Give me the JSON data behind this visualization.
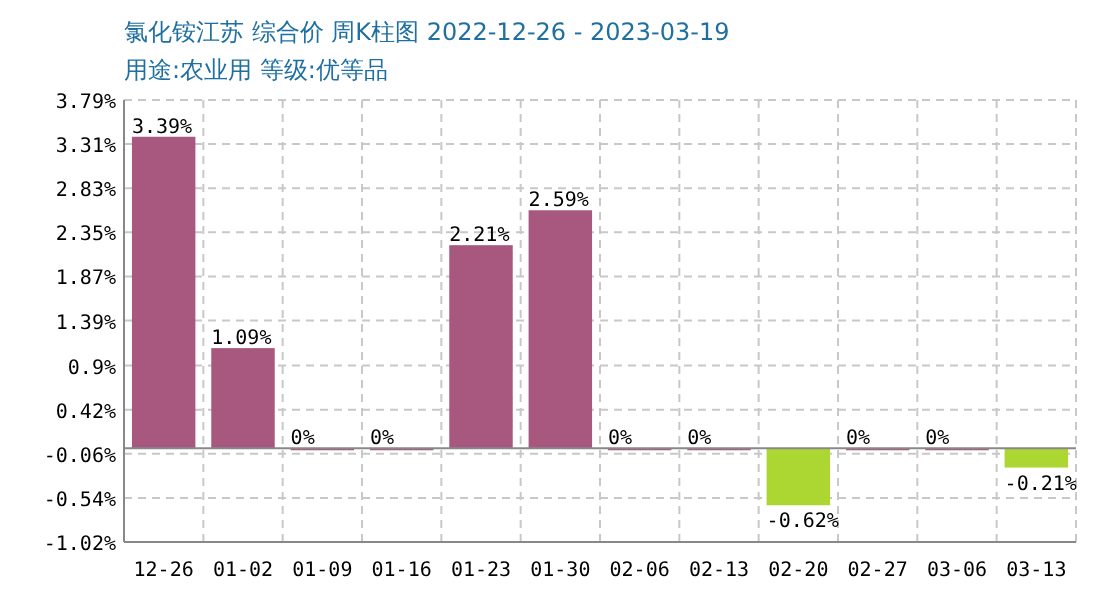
{
  "chart_data": {
    "type": "bar",
    "title": "氯化铵江苏 综合价 周K柱图 2022-12-26 - 2023-03-19",
    "subtitle": "用途:农业用 等级:优等品",
    "categories": [
      "12-26",
      "01-02",
      "01-09",
      "01-16",
      "01-23",
      "01-30",
      "02-06",
      "02-13",
      "02-20",
      "02-27",
      "03-06",
      "03-13"
    ],
    "values": [
      3.39,
      1.09,
      0,
      0,
      2.21,
      2.59,
      0,
      0,
      -0.62,
      0,
      0,
      -0.21
    ],
    "colors": [
      "#a8587f",
      "#a8587f",
      "#a8587f",
      "#a8587f",
      "#a8587f",
      "#a8587f",
      "#a8587f",
      "#a8587f",
      "#acd631",
      "#a8587f",
      "#a8587f",
      "#acd631"
    ],
    "value_labels": [
      "3.39%",
      "1.09%",
      "0%",
      "0%",
      "2.21%",
      "2.59%",
      "0%",
      "0%",
      "-0.62%",
      "0%",
      "0%",
      "-0.21%"
    ],
    "ylim": [
      -1.02,
      3.79
    ],
    "yticks": [
      {
        "value": 3.79,
        "label": "3.79%"
      },
      {
        "value": 3.31,
        "label": "3.31%"
      },
      {
        "value": 2.83,
        "label": "2.83%"
      },
      {
        "value": 2.35,
        "label": "2.35%"
      },
      {
        "value": 1.87,
        "label": "1.87%"
      },
      {
        "value": 1.39,
        "label": "1.39%"
      },
      {
        "value": 0.9,
        "label": "0.9%"
      },
      {
        "value": 0.42,
        "label": "0.42%"
      },
      {
        "value": -0.06,
        "label": "-0.06%"
      },
      {
        "value": -0.54,
        "label": "-0.54%"
      },
      {
        "value": -1.02,
        "label": "-1.02%"
      }
    ],
    "grid": true
  }
}
